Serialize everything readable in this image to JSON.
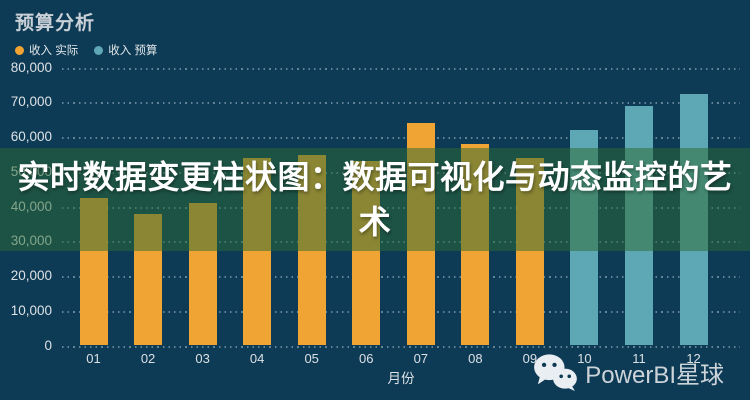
{
  "header": {
    "title": "预算分析"
  },
  "legend": {
    "items": [
      {
        "label": "收入 实际",
        "color": "#f0a434"
      },
      {
        "label": "收入 预算",
        "color": "#5ea7b5"
      }
    ]
  },
  "overlay": {
    "headline": "实时数据变更柱状图：数据可视化与动态监控的艺术"
  },
  "watermark": {
    "icon": "wechat-icon",
    "text": "PowerBI星球"
  },
  "colors": {
    "background": "#0d3a54",
    "actual_bar": "#f0a434",
    "budget_bar": "#5ea7b5",
    "overlay_band": "rgba(45,108,53,0.52)",
    "headline_text": "#ffffff",
    "axis_text": "#dde2e6"
  },
  "chart_data": {
    "type": "bar",
    "title": "预算分析",
    "xlabel": "月份",
    "ylabel": "",
    "categories": [
      "01",
      "02",
      "03",
      "04",
      "05",
      "06",
      "07",
      "08",
      "09",
      "10",
      "11",
      "12"
    ],
    "series": [
      {
        "name": "收入 实际",
        "color": "#f0a434",
        "values": [
          42500,
          38000,
          41000,
          54000,
          55000,
          53000,
          64000,
          58000,
          54000,
          null,
          null,
          null
        ]
      },
      {
        "name": "收入 预算",
        "color": "#5ea7b5",
        "values": [
          null,
          null,
          null,
          null,
          null,
          null,
          null,
          null,
          null,
          62000,
          69000,
          72500
        ]
      }
    ],
    "ylim": [
      0,
      80000
    ],
    "yticks": [
      0,
      10000,
      20000,
      30000,
      40000,
      50000,
      60000,
      70000,
      80000
    ],
    "grid": "horizontal-dotted",
    "legend_position": "top-left"
  }
}
